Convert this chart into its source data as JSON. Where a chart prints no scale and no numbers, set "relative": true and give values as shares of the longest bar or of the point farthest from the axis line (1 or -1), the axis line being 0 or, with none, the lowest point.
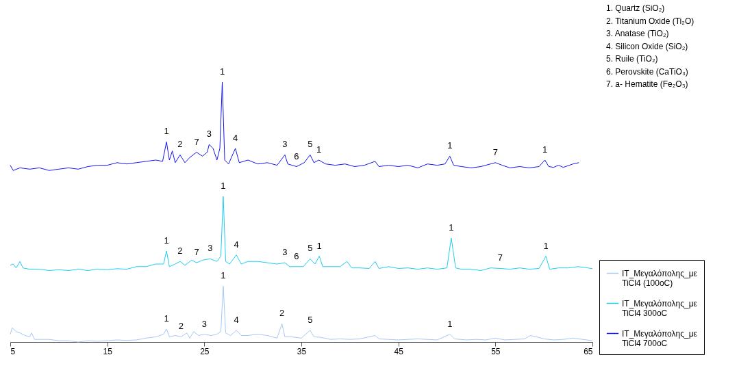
{
  "chart_data": {
    "type": "line",
    "relative": true,
    "legend": "right",
    "grid": false,
    "xlim": [
      5,
      65
    ],
    "xticks": [
      5,
      15,
      25,
      35,
      45,
      55,
      65
    ],
    "series": [
      {
        "name": "IT_Μεγαλόπολης_με TiCl4 (100oC)",
        "color": "#a6c8f5",
        "x": [
          5,
          5.2,
          5.6,
          6,
          6.5,
          7,
          7.2,
          7.5,
          8,
          9,
          10,
          11,
          12,
          13,
          14,
          15,
          16,
          17,
          18,
          19,
          20,
          20.8,
          21.1,
          21.4,
          22,
          22.6,
          23.2,
          23.5,
          23.9,
          24.4,
          25,
          25.7,
          26.3,
          26.7,
          26.95,
          27.2,
          27.7,
          28.3,
          28.8,
          29.5,
          30.5,
          31.5,
          32.5,
          33.0,
          33.3,
          34,
          35,
          35.9,
          36.3,
          37,
          38,
          39,
          40,
          41,
          42.6,
          43,
          44,
          45,
          46,
          47,
          48,
          49,
          50.3,
          50.8,
          52,
          53,
          54,
          55,
          56,
          57,
          58,
          58.6,
          59.2,
          60,
          61,
          62,
          63,
          64,
          65
        ],
        "values": [
          0.03,
          0.055,
          0.04,
          0.035,
          0.025,
          0.02,
          0.035,
          0.01,
          0.01,
          0.01,
          0.005,
          0.005,
          0.0,
          0.005,
          0.003,
          0.005,
          0.008,
          0.006,
          0.008,
          0.015,
          0.02,
          0.03,
          0.05,
          0.02,
          0.025,
          0.02,
          0.035,
          0.015,
          0.04,
          0.025,
          0.03,
          0.025,
          0.03,
          0.04,
          0.215,
          0.035,
          0.025,
          0.045,
          0.025,
          0.025,
          0.03,
          0.025,
          0.015,
          0.07,
          0.02,
          0.02,
          0.015,
          0.045,
          0.02,
          0.018,
          0.01,
          0.012,
          0.01,
          0.012,
          0.025,
          0.012,
          0.01,
          0.008,
          0.01,
          0.012,
          0.01,
          0.008,
          0.03,
          0.012,
          0.008,
          0.01,
          0.008,
          0.015,
          0.008,
          0.01,
          0.012,
          0.025,
          0.02,
          0.012,
          0.008,
          0.01,
          0.015,
          0.01,
          0.005
        ]
      },
      {
        "name": "IT_Μεγαλόπολης_με TiCl4 300oC",
        "color": "#1ccdf2",
        "x": [
          5,
          5.3,
          5.6,
          6,
          6.3,
          7,
          8,
          9,
          10,
          11,
          12,
          13,
          14,
          15,
          16,
          17,
          18,
          19,
          20,
          20.8,
          21.1,
          21.4,
          22,
          22.5,
          23,
          23.7,
          24.2,
          24.8,
          25.6,
          26.3,
          26.7,
          26.95,
          27.2,
          27.6,
          28.3,
          28.8,
          29.5,
          30.5,
          31.5,
          32.5,
          33.3,
          33.8,
          34.5,
          35.2,
          35.9,
          36.4,
          36.85,
          37.2,
          38,
          39,
          39.7,
          40.2,
          41,
          42,
          42.6,
          43,
          44,
          45,
          46,
          47,
          48,
          49,
          50,
          50.45,
          50.9,
          51.5,
          52.5,
          53.5,
          54.5,
          55.5,
          56.5,
          57.5,
          58.5,
          59.5,
          60.2,
          60.6,
          61.5,
          62.5,
          63.5,
          64.2,
          65
        ],
        "values": [
          0.295,
          0.3,
          0.285,
          0.31,
          0.285,
          0.28,
          0.28,
          0.275,
          0.278,
          0.275,
          0.28,
          0.275,
          0.28,
          0.278,
          0.282,
          0.28,
          0.29,
          0.29,
          0.3,
          0.3,
          0.35,
          0.29,
          0.3,
          0.31,
          0.295,
          0.315,
          0.305,
          0.315,
          0.32,
          0.31,
          0.33,
          0.56,
          0.31,
          0.3,
          0.335,
          0.3,
          0.31,
          0.31,
          0.305,
          0.3,
          0.305,
          0.29,
          0.29,
          0.29,
          0.32,
          0.3,
          0.33,
          0.29,
          0.29,
          0.29,
          0.31,
          0.285,
          0.285,
          0.283,
          0.31,
          0.283,
          0.29,
          0.283,
          0.285,
          0.28,
          0.285,
          0.28,
          0.285,
          0.4,
          0.285,
          0.28,
          0.28,
          0.275,
          0.285,
          0.283,
          0.28,
          0.285,
          0.28,
          0.283,
          0.33,
          0.28,
          0.285,
          0.285,
          0.29,
          0.287,
          0.282
        ]
      },
      {
        "name": "IT_Μεγαλόπολης_με TiCl4 700oC",
        "color": "#1414f0",
        "x": [
          5,
          5.3,
          6,
          7,
          8,
          9,
          10,
          11,
          12,
          13,
          14,
          15,
          16,
          17,
          18,
          19,
          20,
          20.7,
          21.1,
          21.4,
          21.7,
          22,
          22.5,
          23,
          23.5,
          24.2,
          24.8,
          25.3,
          25.5,
          25.9,
          26.3,
          26.6,
          26.85,
          27.1,
          27.5,
          28.2,
          28.6,
          29.5,
          30.5,
          31.5,
          32.5,
          33.3,
          33.6,
          34.5,
          35.3,
          35.9,
          36.3,
          36.8,
          37.5,
          38.5,
          39.5,
          40.5,
          41.5,
          42.6,
          43,
          44,
          45,
          46,
          47,
          48,
          49,
          49.8,
          50.3,
          50.7,
          51.5,
          52.5,
          53.5,
          54.5,
          55,
          55.7,
          56.5,
          57.5,
          58.5,
          59.5,
          60.1,
          60.5,
          61,
          61.5,
          62,
          63,
          63.6
        ],
        "values": [
          0.68,
          0.66,
          0.67,
          0.665,
          0.67,
          0.66,
          0.665,
          0.67,
          0.665,
          0.675,
          0.68,
          0.68,
          0.69,
          0.685,
          0.69,
          0.695,
          0.7,
          0.695,
          0.77,
          0.7,
          0.735,
          0.69,
          0.72,
          0.69,
          0.71,
          0.73,
          0.715,
          0.73,
          0.76,
          0.745,
          0.7,
          0.745,
          1.0,
          0.7,
          0.685,
          0.745,
          0.69,
          0.7,
          0.685,
          0.69,
          0.68,
          0.72,
          0.685,
          0.675,
          0.69,
          0.72,
          0.69,
          0.7,
          0.685,
          0.68,
          0.685,
          0.675,
          0.68,
          0.695,
          0.675,
          0.68,
          0.675,
          0.68,
          0.67,
          0.685,
          0.68,
          0.685,
          0.715,
          0.68,
          0.675,
          0.67,
          0.675,
          0.685,
          0.69,
          0.68,
          0.67,
          0.675,
          0.67,
          0.675,
          0.7,
          0.675,
          0.672,
          0.68,
          0.672,
          0.685,
          0.69
        ]
      }
    ],
    "annotations": [
      "1. Quartz (SiO₂)",
      "2. Titanium Oxide (Ti₂O)",
      "3. Anatase (TiO₂)",
      "4. Silicon Oxide (SiO₂)",
      "5. Ruile (TiO₂)",
      "6. Perovskite (CaTiO₃)",
      "7. a- Hematite (Fe₂O₃)",
      {
        "text": "1",
        "x": 21.1,
        "y": 0.77
      },
      {
        "text": "2",
        "x": 22.5,
        "y": 0.72
      },
      {
        "text": "7",
        "x": 24.2,
        "y": 0.73
      },
      {
        "text": "3",
        "x": 25.5,
        "y": 0.76
      },
      {
        "text": "1",
        "x": 26.85,
        "y": 1.0
      },
      {
        "text": "4",
        "x": 28.2,
        "y": 0.745
      },
      {
        "text": "3",
        "x": 33.3,
        "y": 0.72
      },
      {
        "text": "6",
        "x": 34.5,
        "y": 0.675
      },
      {
        "text": "5",
        "x": 35.9,
        "y": 0.72
      },
      {
        "text": "1",
        "x": 36.8,
        "y": 0.7
      },
      {
        "text": "1",
        "x": 50.3,
        "y": 0.715
      },
      {
        "text": "7",
        "x": 55,
        "y": 0.69
      },
      {
        "text": "1",
        "x": 60.1,
        "y": 0.7
      },
      {
        "text": "1",
        "x": 21.1,
        "y": 0.35
      },
      {
        "text": "2",
        "x": 22.5,
        "y": 0.31
      },
      {
        "text": "7",
        "x": 24.2,
        "y": 0.305
      },
      {
        "text": "3",
        "x": 25.6,
        "y": 0.32
      },
      {
        "text": "1",
        "x": 26.95,
        "y": 0.56
      },
      {
        "text": "4",
        "x": 28.3,
        "y": 0.335
      },
      {
        "text": "3",
        "x": 33.3,
        "y": 0.305
      },
      {
        "text": "6",
        "x": 34.5,
        "y": 0.29
      },
      {
        "text": "5",
        "x": 35.9,
        "y": 0.32
      },
      {
        "text": "1",
        "x": 36.85,
        "y": 0.33
      },
      {
        "text": "1",
        "x": 50.45,
        "y": 0.4
      },
      {
        "text": "7",
        "x": 55.5,
        "y": 0.283
      },
      {
        "text": "1",
        "x": 60.2,
        "y": 0.33
      },
      {
        "text": "1",
        "x": 21.1,
        "y": 0.05
      },
      {
        "text": "2",
        "x": 22.6,
        "y": 0.02
      },
      {
        "text": "3",
        "x": 25,
        "y": 0.03
      },
      {
        "text": "1",
        "x": 26.95,
        "y": 0.215
      },
      {
        "text": "4",
        "x": 28.3,
        "y": 0.045
      },
      {
        "text": "2",
        "x": 33.0,
        "y": 0.07
      },
      {
        "text": "5",
        "x": 35.9,
        "y": 0.045
      },
      {
        "text": "1",
        "x": 50.3,
        "y": 0.03
      }
    ]
  }
}
